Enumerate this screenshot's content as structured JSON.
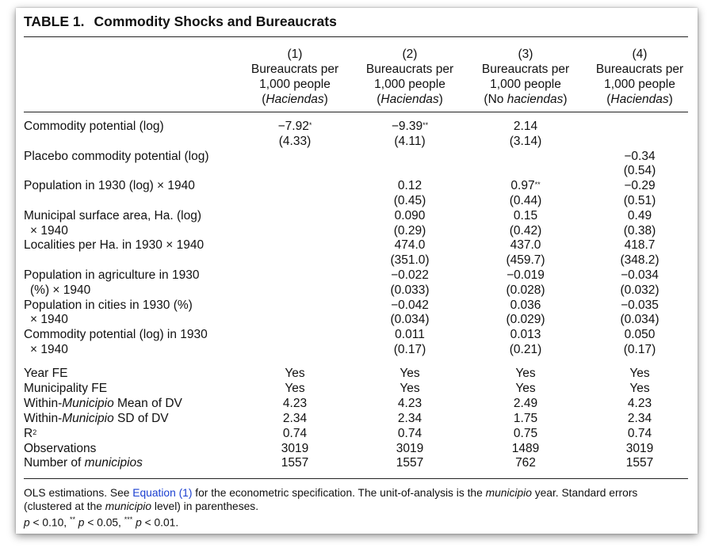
{
  "table": {
    "label": "TABLE 1.",
    "title": "Commodity Shocks and Bureaucrats",
    "columns": [
      {
        "number": "(1)",
        "line1": "Bureaucrats per",
        "line2": "1,000 people",
        "line3_pre": "(",
        "line3_italic": "Haciendas",
        "line3_post": ")"
      },
      {
        "number": "(2)",
        "line1": "Bureaucrats per",
        "line2": "1,000 people",
        "line3_pre": "(",
        "line3_italic": "Haciendas",
        "line3_post": ")"
      },
      {
        "number": "(3)",
        "line1": "Bureaucrats per",
        "line2": "1,000 people",
        "line3_pre": "(No ",
        "line3_italic": "haciendas",
        "line3_post": ")"
      },
      {
        "number": "(4)",
        "line1": "Bureaucrats per",
        "line2": "1,000 people",
        "line3_pre": "(",
        "line3_italic": "Haciendas",
        "line3_post": ")"
      }
    ],
    "rows": [
      {
        "label": [
          "Commodity potential (log)"
        ],
        "coef": [
          "−7.92",
          "−9.39",
          "2.14",
          ""
        ],
        "stars": [
          "*",
          "**",
          "",
          ""
        ],
        "se": [
          "(4.33)",
          "(4.11)",
          "(3.14)",
          ""
        ]
      },
      {
        "label": [
          "Placebo commodity potential (log)"
        ],
        "coef": [
          "",
          "",
          "",
          "−0.34"
        ],
        "stars": [
          "",
          "",
          "",
          ""
        ],
        "se": [
          "",
          "",
          "",
          "(0.54)"
        ]
      },
      {
        "label": [
          "Population in 1930 (log) × 1940"
        ],
        "coef": [
          "",
          "0.12",
          "0.97",
          "−0.29"
        ],
        "stars": [
          "",
          "",
          "**",
          ""
        ],
        "se": [
          "",
          "(0.45)",
          "(0.44)",
          "(0.51)"
        ]
      },
      {
        "label": [
          "Municipal surface area, Ha. (log)",
          "× 1940"
        ],
        "coef": [
          "",
          "0.090",
          "0.15",
          "0.49"
        ],
        "stars": [
          "",
          "",
          "",
          ""
        ],
        "se": [
          "",
          "(0.29)",
          "(0.42)",
          "(0.38)"
        ]
      },
      {
        "label": [
          "Localities per Ha. in 1930 × 1940"
        ],
        "coef": [
          "",
          "474.0",
          "437.0",
          "418.7"
        ],
        "stars": [
          "",
          "",
          "",
          ""
        ],
        "se": [
          "",
          "(351.0)",
          "(459.7)",
          "(348.2)"
        ]
      },
      {
        "label": [
          "Population in agriculture in 1930",
          "(%) × 1940"
        ],
        "coef": [
          "",
          "−0.022",
          "−0.019",
          "−0.034"
        ],
        "stars": [
          "",
          "",
          "",
          ""
        ],
        "se": [
          "",
          "(0.033)",
          "(0.028)",
          "(0.032)"
        ]
      },
      {
        "label": [
          "Population in cities in 1930 (%)",
          "× 1940"
        ],
        "coef": [
          "",
          "−0.042",
          "0.036",
          "−0.035"
        ],
        "stars": [
          "",
          "",
          "",
          ""
        ],
        "se": [
          "",
          "(0.034)",
          "(0.029)",
          "(0.034)"
        ]
      },
      {
        "label": [
          "Commodity potential (log) in 1930",
          "× 1940"
        ],
        "coef": [
          "",
          "0.011",
          "0.013",
          "0.050"
        ],
        "stars": [
          "",
          "",
          "",
          ""
        ],
        "se": [
          "",
          "(0.17)",
          "(0.21)",
          "(0.17)"
        ]
      }
    ],
    "stats": [
      {
        "pre": "Year FE",
        "ital": "",
        "post": "",
        "values": [
          "Yes",
          "Yes",
          "Yes",
          "Yes"
        ]
      },
      {
        "pre": "Municipality FE",
        "ital": "",
        "post": "",
        "values": [
          "Yes",
          "Yes",
          "Yes",
          "Yes"
        ]
      },
      {
        "pre": "Within-",
        "ital": "Municipio",
        "post": " Mean of DV",
        "values": [
          "4.23",
          "4.23",
          "2.49",
          "4.23"
        ]
      },
      {
        "pre": "Within-",
        "ital": "Municipio",
        "post": " SD of DV",
        "values": [
          "2.34",
          "2.34",
          "1.75",
          "2.34"
        ]
      },
      {
        "pre": "R",
        "sup": "2",
        "ital": "",
        "post": "",
        "values": [
          "0.74",
          "0.74",
          "0.75",
          "0.74"
        ]
      },
      {
        "pre": "Observations",
        "ital": "",
        "post": "",
        "values": [
          "3019",
          "3019",
          "1489",
          "3019"
        ]
      },
      {
        "pre": "Number of ",
        "ital": "municipios",
        "post": "",
        "values": [
          "1557",
          "1557",
          "762",
          "1557"
        ]
      }
    ],
    "notes": {
      "l1_a": "OLS estimations. See ",
      "l1_link": "Equation (1)",
      "l1_b": " for the econometric specification. The unit-of-analysis is the ",
      "l1_ital": "municipio",
      "l1_c": " year. Standard errors",
      "l2_a": "(clustered at the ",
      "l2_ital": "municipio",
      "l2_b": " level) in parentheses.",
      "p1": "p",
      "p1_rest": " < 0.10, ",
      "s2": "**",
      "p2": "p",
      "p2_rest": " < 0.05, ",
      "s3": "***",
      "p3": "p",
      "p3_rest": " < 0.01."
    }
  }
}
